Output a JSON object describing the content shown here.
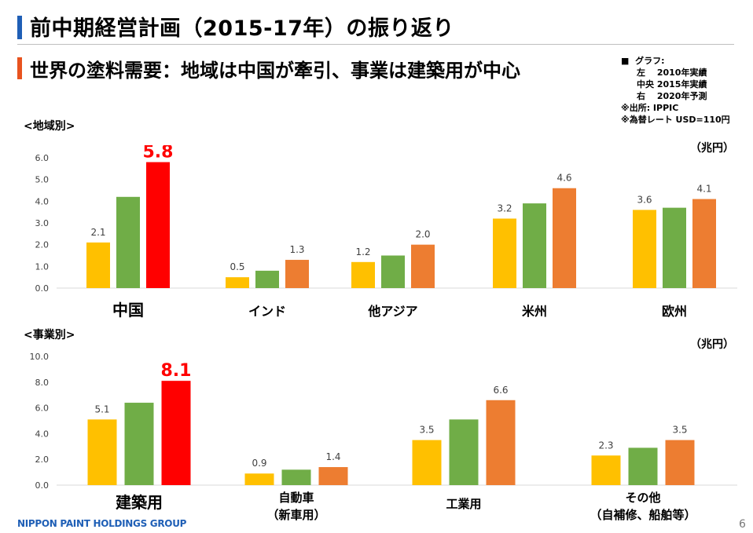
{
  "header": {
    "main_title": "前中期経営計画（2015-17年）の振り返り",
    "sub_title": "世界の塗料需要：地域は中国が牽引、事業は建築用が中心"
  },
  "legend": {
    "bullet": "■",
    "heading": "グラフ:",
    "rows": [
      "左　 2010年実績",
      "中央 2015年実績",
      "右　 2020年予測"
    ],
    "source": "※出所: IPPIC",
    "fx": "※為替レート USD=110円"
  },
  "colors": {
    "y2010": "#ffc000",
    "y2015": "#70ad47",
    "y2020": "#ed7d31",
    "highlight": "#ff0000",
    "axis_text": "#404040"
  },
  "sections": {
    "region_label": "<地域別>",
    "business_label": "<事業別>",
    "unit": "（兆円）"
  },
  "chart_data": [
    {
      "type": "bar",
      "title": "<地域別>",
      "unit": "（兆円）",
      "ylim": [
        0,
        6
      ],
      "yticks": [
        "0.0",
        "1.0",
        "2.0",
        "3.0",
        "4.0",
        "5.0",
        "6.0"
      ],
      "categories": [
        "中国",
        "インド",
        "他アジア",
        "米州",
        "欧州"
      ],
      "series": [
        {
          "name": "2010年実績",
          "values": [
            2.1,
            0.5,
            1.2,
            3.2,
            3.6
          ],
          "labels": [
            "2.1",
            "0.5",
            "1.2",
            "3.2",
            "3.6"
          ]
        },
        {
          "name": "2015年実績",
          "values": [
            4.2,
            0.8,
            1.5,
            3.9,
            3.7
          ],
          "labels": [
            "",
            "",
            "",
            "",
            ""
          ]
        },
        {
          "name": "2020年予測",
          "values": [
            5.8,
            1.3,
            2.0,
            4.6,
            4.1
          ],
          "labels": [
            "5.8",
            "1.3",
            "2.0",
            "4.6",
            "4.1"
          ]
        }
      ],
      "highlight": {
        "category": "中国",
        "series": "2020年予測"
      }
    },
    {
      "type": "bar",
      "title": "<事業別>",
      "unit": "（兆円）",
      "ylim": [
        0,
        10
      ],
      "yticks": [
        "0.0",
        "2.0",
        "4.0",
        "6.0",
        "8.0",
        "10.0"
      ],
      "categories": [
        [
          "建築用"
        ],
        [
          "自動車",
          "（新車用）"
        ],
        [
          "工業用"
        ],
        [
          "その他",
          "（自補修、船舶等）"
        ]
      ],
      "series": [
        {
          "name": "2010年実績",
          "values": [
            5.1,
            0.9,
            3.5,
            2.3
          ],
          "labels": [
            "5.1",
            "0.9",
            "3.5",
            "2.3"
          ]
        },
        {
          "name": "2015年実績",
          "values": [
            6.4,
            1.2,
            5.1,
            2.9
          ],
          "labels": [
            "",
            "",
            "",
            ""
          ]
        },
        {
          "name": "2020年予測",
          "values": [
            8.1,
            1.4,
            6.6,
            3.5
          ],
          "labels": [
            "8.1",
            "1.4",
            "6.6",
            "3.5"
          ]
        }
      ],
      "highlight": {
        "category": "建築用",
        "series": "2020年予測"
      }
    }
  ],
  "footer": {
    "logo": "NIPPON PAINT HOLDINGS GROUP",
    "page": "6"
  }
}
